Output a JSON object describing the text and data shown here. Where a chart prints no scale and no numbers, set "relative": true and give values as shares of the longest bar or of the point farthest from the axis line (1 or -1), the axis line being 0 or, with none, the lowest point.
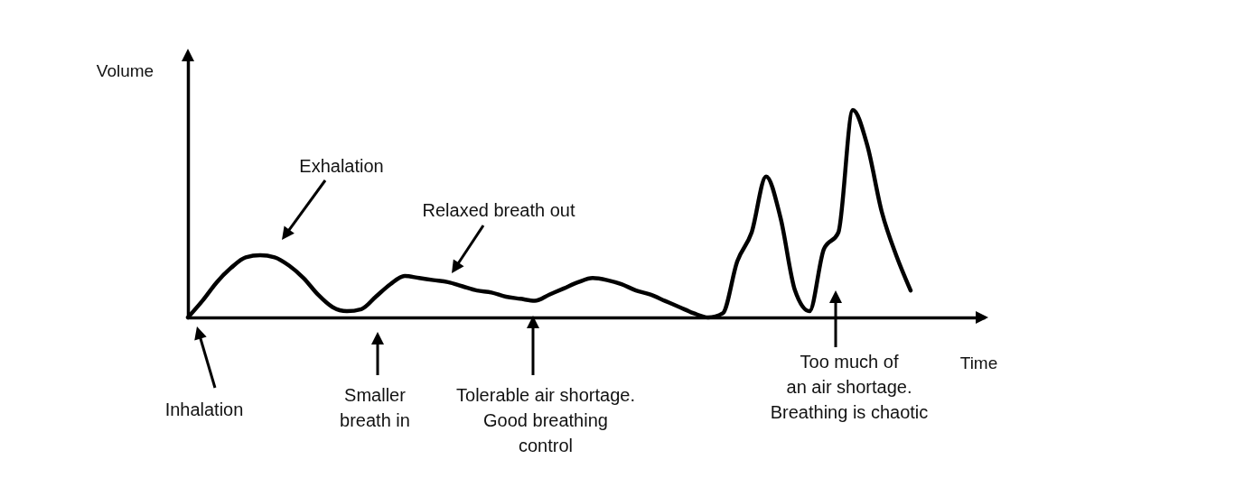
{
  "chart_data": {
    "type": "line",
    "relative": true,
    "xlabel": "Time",
    "ylabel": "Volume",
    "categories": [
      null,
      null,
      null,
      null,
      null,
      null,
      null,
      null,
      null,
      null,
      null,
      null,
      null,
      null,
      null,
      null,
      null,
      null,
      null,
      null,
      null,
      null,
      null,
      null,
      null,
      null,
      null,
      null,
      null,
      null,
      null,
      null,
      null,
      null,
      null,
      null,
      null,
      null,
      null,
      null,
      null,
      null,
      null,
      null,
      null,
      null,
      null,
      null,
      null,
      null,
      null
    ],
    "series": [
      {
        "color": "#000000",
        "values": [
          0,
          0.08,
          0.17,
          0.24,
          0.29,
          0.3,
          0.29,
          0.25,
          0.19,
          0.11,
          0.05,
          0.03,
          0.04,
          0.1,
          0.16,
          0.2,
          0.19,
          0.18,
          0.17,
          0.15,
          0.13,
          0.12,
          0.1,
          0.09,
          0.08,
          0.11,
          0.14,
          0.17,
          0.19,
          0.18,
          0.16,
          0.13,
          0.11,
          0.08,
          0.05,
          0.02,
          0,
          0.02,
          0.27,
          0.41,
          0.68,
          0.48,
          0.13,
          0.03,
          0.33,
          0.41,
          1,
          0.83,
          0.51,
          0.3,
          0.13
        ]
      }
    ],
    "annotations": [
      "Exhalation",
      "Relaxed breath out",
      "Inhalation",
      "Smaller\nbreath in",
      "Tolerable air shortage.\nGood breathing\ncontrol",
      "Too much of\nan air shortage.\nBreathing is chaotic"
    ],
    "grid": false,
    "marker": "none",
    "line_style": "solid"
  }
}
